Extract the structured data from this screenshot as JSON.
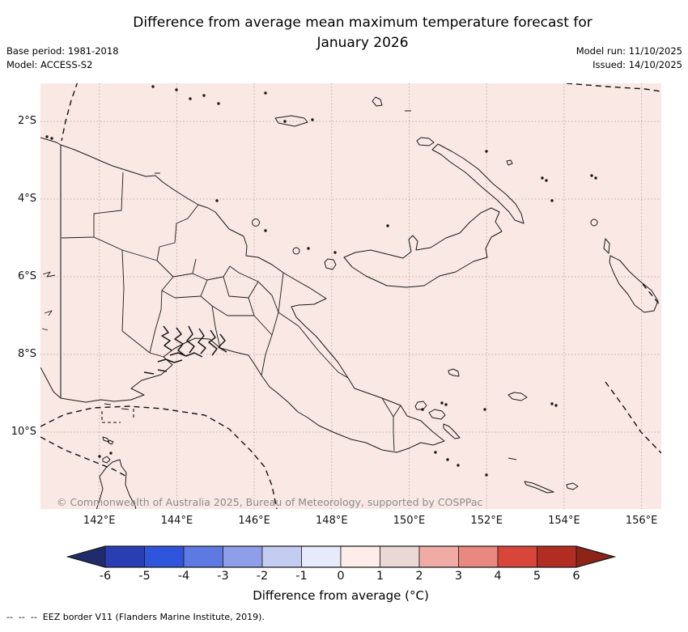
{
  "header": {
    "title_line1": "Difference from average mean maximum temperature forecast for",
    "title_line2": "January 2026",
    "base_period": "Base period: 1981-2018",
    "model": "Model: ACCESS-S2",
    "model_run": "Model run: 11/10/2025",
    "issued": "Issued: 14/10/2025"
  },
  "map": {
    "copyright": "© Commonwealth of Australia 2025, Bureau of Meteorology, supported by COSPPac",
    "region": "Papua New Guinea",
    "fill_meaning": "whole region in 0 to +1 °C anomaly class"
  },
  "axes": {
    "lat_ticks": [
      "2°S",
      "4°S",
      "6°S",
      "8°S",
      "10°S"
    ],
    "lon_ticks": [
      "142°E",
      "144°E",
      "146°E",
      "148°E",
      "150°E",
      "152°E",
      "154°E",
      "156°E"
    ]
  },
  "colorbar": {
    "label": "Difference from average (°C)",
    "tick_labels": [
      "-6",
      "-5",
      "-4",
      "-3",
      "-2",
      "-1",
      "0",
      "1",
      "2",
      "3",
      "4",
      "5",
      "6"
    ],
    "segment_colors": [
      "#2a3eb4",
      "#2f55dc",
      "#5d7ae2",
      "#8f9ee9",
      "#c4ccf2",
      "#e7eafa",
      "#fdece7",
      "#e9d8d4",
      "#f0aca4",
      "#e9887f",
      "#d84639",
      "#b12d22"
    ],
    "under_arrow_color": "#1f2b6d",
    "over_arrow_color": "#8e2318",
    "outline_color": "#1a1a1a"
  },
  "colors": {
    "map_background": "#f9e8e4",
    "gridline": "#c4aaa8",
    "coastline": "#1a1a1a",
    "border_141e": "#6f6f6f",
    "eez_dash": "#111111",
    "copyright_text": "#8c8c8c"
  },
  "footnote": "--  --  --  EEZ border V11 (Flanders Marine Institute, 2019)."
}
